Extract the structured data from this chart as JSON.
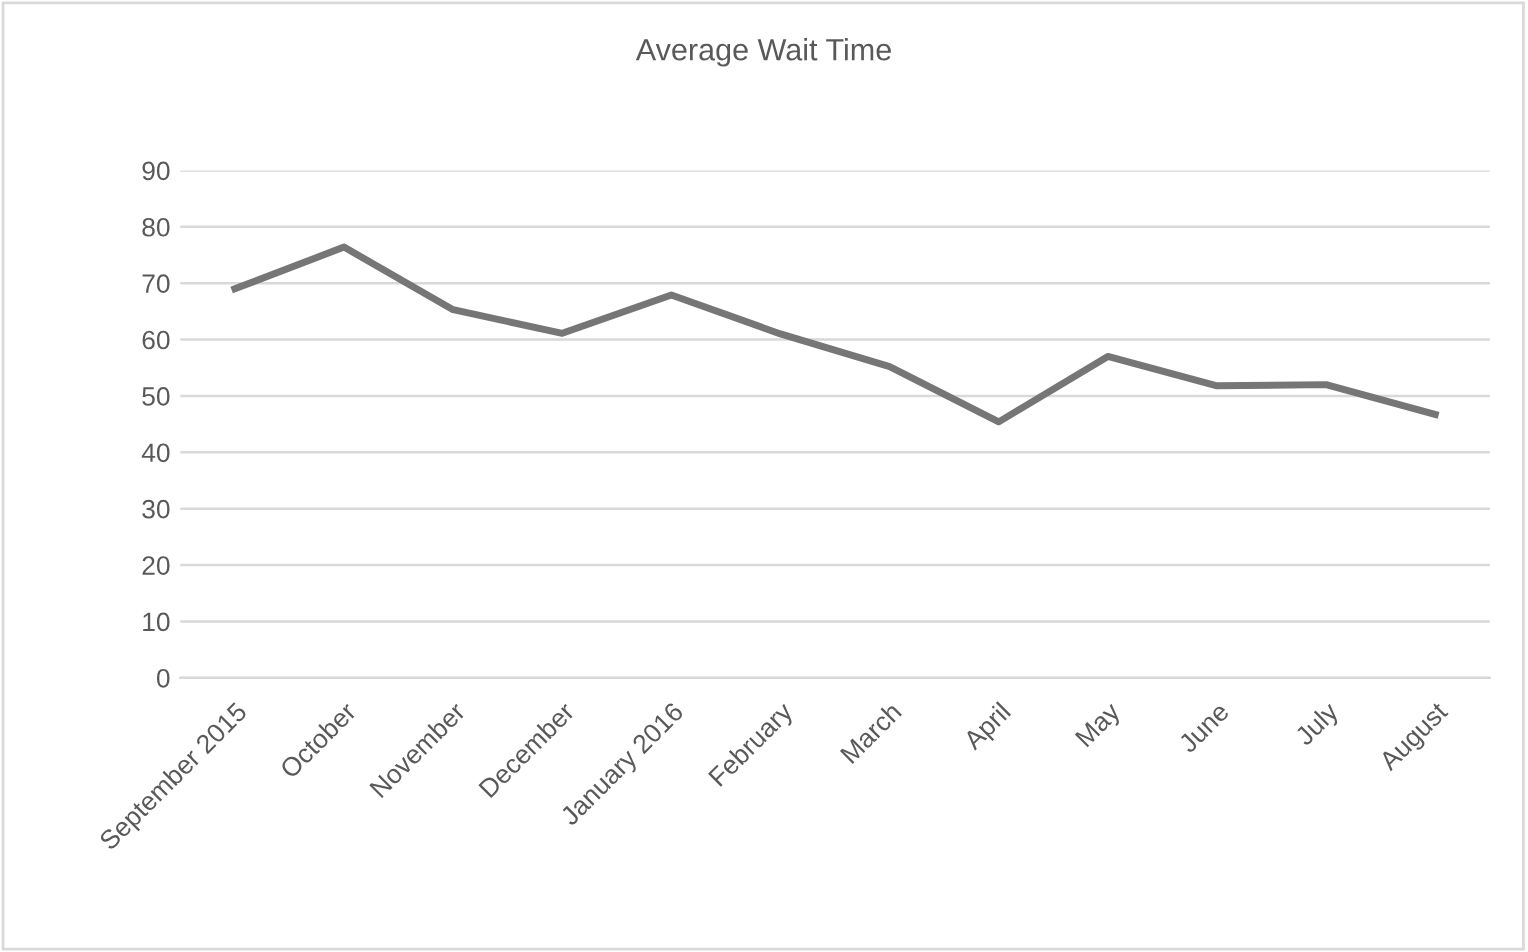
{
  "chart_data": {
    "type": "line",
    "title": "Average Wait Time",
    "categories": [
      "September 2015",
      "October",
      "November",
      "December",
      "January 2016",
      "February",
      "March",
      "April",
      "May",
      "June",
      "July",
      "August"
    ],
    "series": [
      {
        "color": "#767676",
        "values": [
          69,
          76.4,
          65.3,
          61.1,
          67.9,
          61,
          55.2,
          45.4,
          57,
          51.8,
          52,
          46.7
        ]
      }
    ],
    "ylim": [
      0,
      90
    ],
    "yticks": [
      0,
      10,
      20,
      30,
      40,
      50,
      60,
      70,
      80,
      90
    ],
    "grid": "y",
    "legend": false,
    "marker": "none",
    "line_style": "solid"
  }
}
